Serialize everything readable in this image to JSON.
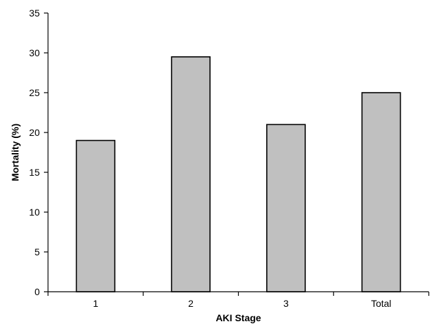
{
  "chart_data": {
    "type": "bar",
    "categories": [
      "1",
      "2",
      "3",
      "Total"
    ],
    "values": [
      19,
      29.5,
      21,
      25
    ],
    "title": "",
    "xlabel": "AKI Stage",
    "ylabel": "Mortality (%)",
    "ylim": [
      0,
      35
    ],
    "yticks": [
      "0",
      "5",
      "10",
      "15",
      "20",
      "25",
      "30",
      "35"
    ],
    "grid": false,
    "legend": "none",
    "colors": {
      "bar_fill": "#c0c0c0",
      "bar_stroke": "#000000",
      "axis": "#000000"
    }
  }
}
